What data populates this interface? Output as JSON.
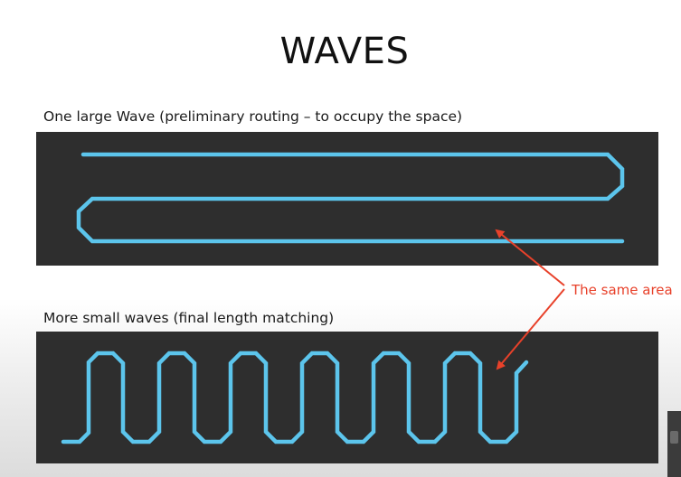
{
  "slide": {
    "title": "WAVES"
  },
  "panels": {
    "top_caption": "One large Wave (preliminary routing – to occupy the space)",
    "bottom_caption": "More small waves (final length matching)"
  },
  "annotation": {
    "label": "The same area"
  },
  "colors": {
    "trace": "#5cc5ec",
    "panel_background": "#2e2e2e",
    "annotation": "#e8412a"
  }
}
